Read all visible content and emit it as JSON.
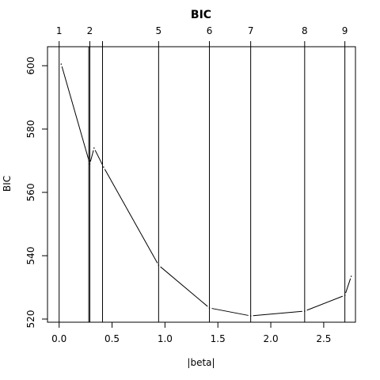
{
  "chart_data": {
    "type": "line",
    "title": "BIC",
    "xlabel": "|beta|",
    "ylabel": "BIC",
    "xlim": [
      -0.11,
      2.8
    ],
    "ylim": [
      519,
      606
    ],
    "x_ticks": [
      0.0,
      0.5,
      1.0,
      1.5,
      2.0,
      2.5
    ],
    "x_tick_labels": [
      "0.0",
      "0.5",
      "1.0",
      "1.5",
      "2.0",
      "2.5"
    ],
    "y_ticks": [
      520,
      540,
      560,
      580,
      600
    ],
    "y_tick_labels": [
      "520",
      "540",
      "560",
      "580",
      "600"
    ],
    "step_lines": [
      {
        "x": 0.0,
        "label": "1"
      },
      {
        "x": 0.29,
        "label": "2"
      },
      {
        "x": 0.41,
        "label": ""
      },
      {
        "x": 0.94,
        "label": "5"
      },
      {
        "x": 1.42,
        "label": "6"
      },
      {
        "x": 1.81,
        "label": "7"
      },
      {
        "x": 2.32,
        "label": "8"
      },
      {
        "x": 2.7,
        "label": "9"
      }
    ],
    "step_line_bold": [
      0.28
    ],
    "series": [
      {
        "values": [
          {
            "x": 0.02,
            "y": 600.5
          },
          {
            "x": 0.29,
            "y": 569.0
          },
          {
            "x": 0.33,
            "y": 574.0
          },
          {
            "x": 0.42,
            "y": 568.0
          },
          {
            "x": 0.94,
            "y": 537.0
          },
          {
            "x": 1.42,
            "y": 523.5
          },
          {
            "x": 1.81,
            "y": 521.0
          },
          {
            "x": 2.32,
            "y": 522.5
          },
          {
            "x": 2.7,
            "y": 527.5
          },
          {
            "x": 2.76,
            "y": 533.5
          }
        ]
      }
    ],
    "grid": false
  }
}
